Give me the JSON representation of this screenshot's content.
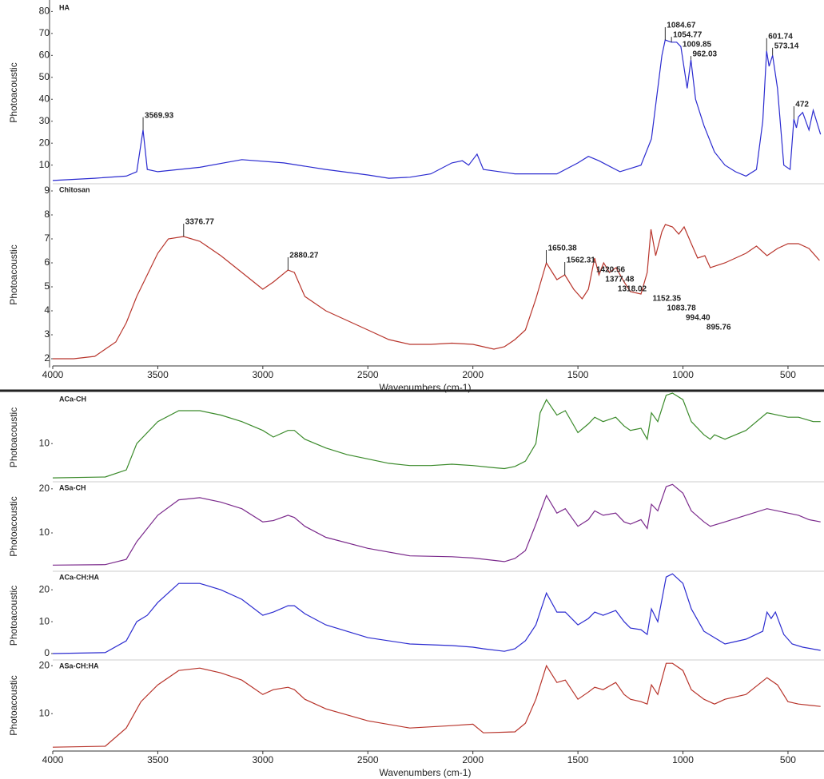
{
  "chart_data": [
    {
      "type": "line",
      "title": "HA",
      "ylabel": "Photoacoustic",
      "color": "#2b2bd0",
      "xlim": [
        4000,
        340
      ],
      "ylim": [
        1.5,
        84.5
      ],
      "yticks": [
        10,
        20,
        30,
        40,
        50,
        60,
        70,
        80
      ],
      "x": [
        4000,
        3800,
        3650,
        3600,
        3569.93,
        3550,
        3500,
        3300,
        3100,
        2900,
        2700,
        2500,
        2400,
        2300,
        2200,
        2100,
        2050,
        2020,
        1980,
        1950,
        1800,
        1600,
        1500,
        1450,
        1400,
        1300,
        1200,
        1150,
        1100,
        1084.67,
        1054.77,
        1030,
        1009.85,
        980,
        962.03,
        940,
        900,
        850,
        800,
        750,
        700,
        650,
        620,
        601.74,
        590,
        573.14,
        550,
        520,
        490,
        472,
        460,
        450,
        430,
        400,
        380,
        345
      ],
      "values": [
        3,
        4,
        5,
        7,
        26,
        8,
        7,
        9,
        12.5,
        11,
        8,
        5.5,
        4,
        4.5,
        6,
        11,
        12,
        10,
        15,
        8,
        6,
        6,
        11,
        14,
        12,
        7,
        10,
        22,
        60,
        67,
        66,
        66,
        64,
        45,
        58,
        40,
        28,
        16,
        10,
        7,
        5,
        8,
        30,
        62,
        55,
        60,
        45,
        10,
        8,
        31,
        27,
        32,
        34,
        26,
        35,
        24
      ],
      "peaks": [
        3569.93,
        1084.67,
        1054.77,
        1009.85,
        962.03,
        601.74,
        573.14,
        472
      ]
    },
    {
      "type": "line",
      "title": "Chitosan",
      "ylabel": "Photoacoustic",
      "color": "#b8352c",
      "xlim": [
        4000,
        340
      ],
      "ylim": [
        1.7,
        9.3
      ],
      "yticks": [
        2,
        3,
        4,
        5,
        6,
        7,
        8,
        9
      ],
      "xticks": [
        4000,
        3500,
        3000,
        2500,
        2000,
        1500,
        1000,
        500
      ],
      "xlabel": "Wavenumbers (cm-1)",
      "x": [
        4000,
        3900,
        3800,
        3750,
        3700,
        3650,
        3600,
        3500,
        3450,
        3376.77,
        3300,
        3200,
        3100,
        3000,
        2950,
        2880.27,
        2850,
        2800,
        2700,
        2600,
        2500,
        2400,
        2300,
        2200,
        2100,
        2000,
        1900,
        1850,
        1800,
        1750,
        1700,
        1650.38,
        1600,
        1562.31,
        1520,
        1480,
        1450,
        1420.56,
        1400,
        1377.48,
        1350,
        1318.02,
        1280,
        1250,
        1200,
        1170,
        1152.35,
        1130,
        1100,
        1083.78,
        1050,
        1020,
        994.4,
        960,
        930,
        895.76,
        870,
        800,
        700,
        650,
        600,
        550,
        500,
        450,
        400,
        350
      ],
      "values": [
        2,
        2,
        2.1,
        2.4,
        2.7,
        3.5,
        4.6,
        6.4,
        7.0,
        7.1,
        6.9,
        6.3,
        5.6,
        4.9,
        5.2,
        5.7,
        5.6,
        4.6,
        4.0,
        3.6,
        3.2,
        2.8,
        2.6,
        2.6,
        2.65,
        2.6,
        2.4,
        2.5,
        2.8,
        3.2,
        4.5,
        6.0,
        5.3,
        5.5,
        4.9,
        4.5,
        4.9,
        6.2,
        5.5,
        6.0,
        5.6,
        5.8,
        5.2,
        4.8,
        4.7,
        5.6,
        7.4,
        6.3,
        7.3,
        7.6,
        7.5,
        7.2,
        7.5,
        6.8,
        6.2,
        6.3,
        5.8,
        6.0,
        6.4,
        6.7,
        6.3,
        6.6,
        6.8,
        6.8,
        6.6,
        6.1
      ],
      "peaks": [
        3376.77,
        2880.27,
        1650.38,
        1562.31,
        1420.56,
        1377.48,
        1318.02,
        1152.35,
        1083.78,
        {
          "value": 994.4,
          "label": "994.40"
        },
        895.76
      ]
    },
    {
      "type": "line",
      "title": "ACa-CH",
      "ylabel": "Photoacoustic",
      "color": "#3a8a2a",
      "xlim": [
        4000,
        340
      ],
      "ylim": [
        1.3,
        21.5
      ],
      "yticks": [
        10
      ],
      "x": [
        4000,
        3750,
        3650,
        3600,
        3500,
        3400,
        3300,
        3200,
        3100,
        3000,
        2950,
        2880,
        2850,
        2800,
        2700,
        2600,
        2500,
        2400,
        2300,
        2200,
        2100,
        2000,
        1900,
        1850,
        1800,
        1750,
        1700,
        1680,
        1650,
        1600,
        1560,
        1500,
        1450,
        1420,
        1380,
        1320,
        1280,
        1250,
        1200,
        1170,
        1150,
        1120,
        1080,
        1050,
        1000,
        960,
        900,
        870,
        850,
        800,
        700,
        600,
        500,
        450,
        380,
        345
      ],
      "values": [
        2.2,
        2.4,
        4,
        10,
        15,
        17.5,
        17.5,
        16.5,
        15,
        13,
        11.5,
        13,
        13,
        11,
        9,
        7.5,
        6.5,
        5.5,
        5,
        5,
        5.3,
        5,
        4.5,
        4.3,
        4.8,
        6,
        10,
        17,
        20,
        16.5,
        17.5,
        12.5,
        14.5,
        16,
        15,
        16,
        14,
        13,
        13.5,
        11,
        17,
        15,
        21,
        21.5,
        20,
        15,
        12,
        11,
        12,
        11,
        13,
        17,
        16,
        16,
        15,
        15
      ]
    },
    {
      "type": "line",
      "title": "ASa-CH",
      "ylabel": "Photoacoustic",
      "color": "#7b2a8c",
      "xlim": [
        4000,
        340
      ],
      "ylim": [
        1.3,
        21.6
      ],
      "yticks": [
        10,
        20
      ],
      "x": [
        4000,
        3750,
        3650,
        3600,
        3500,
        3400,
        3300,
        3200,
        3100,
        3000,
        2950,
        2880,
        2850,
        2800,
        2700,
        2500,
        2300,
        2100,
        2000,
        1850,
        1800,
        1750,
        1700,
        1650,
        1600,
        1560,
        1500,
        1450,
        1420,
        1380,
        1320,
        1280,
        1250,
        1200,
        1170,
        1150,
        1120,
        1080,
        1050,
        1000,
        960,
        900,
        870,
        800,
        700,
        600,
        500,
        450,
        400,
        345
      ],
      "values": [
        2.7,
        2.8,
        4,
        8,
        14,
        17.5,
        18,
        17,
        15.5,
        12.5,
        12.8,
        14,
        13.5,
        11.5,
        9,
        6.5,
        4.8,
        4.6,
        4.3,
        3.5,
        4.2,
        6,
        12,
        18.5,
        14.5,
        15.5,
        11.5,
        13,
        15,
        14,
        14.5,
        12.5,
        12,
        13,
        11,
        16.5,
        15,
        20.5,
        21,
        19,
        15,
        12.5,
        11.5,
        12.5,
        14,
        15.5,
        14.5,
        14,
        13,
        12.5
      ]
    },
    {
      "type": "line",
      "title": "ACa-CH:HA",
      "ylabel": "Photoacoustic",
      "color": "#2b2bd0",
      "xlim": [
        4000,
        340
      ],
      "ylim": [
        -2,
        25.8
      ],
      "yticks": [
        0,
        10,
        20
      ],
      "x": [
        4000,
        3750,
        3650,
        3600,
        3550,
        3500,
        3400,
        3300,
        3200,
        3100,
        3000,
        2950,
        2880,
        2850,
        2800,
        2700,
        2500,
        2300,
        2100,
        2000,
        1950,
        1850,
        1800,
        1750,
        1700,
        1650,
        1600,
        1560,
        1500,
        1450,
        1420,
        1380,
        1320,
        1280,
        1250,
        1200,
        1170,
        1150,
        1120,
        1080,
        1050,
        1000,
        960,
        900,
        850,
        800,
        700,
        620,
        600,
        580,
        560,
        520,
        480,
        430,
        345
      ],
      "values": [
        0,
        0.3,
        4,
        10,
        12,
        16,
        22,
        22,
        20,
        17,
        12,
        13,
        15,
        15,
        12.5,
        9,
        5,
        3,
        2.5,
        2,
        1.5,
        0.7,
        1.5,
        4,
        9,
        19,
        13,
        13,
        9,
        11,
        13,
        12,
        13.5,
        10,
        8,
        7.5,
        6,
        14,
        10,
        24,
        25,
        22,
        14,
        7,
        5,
        3,
        4.5,
        7,
        13,
        11,
        13,
        6,
        3,
        2,
        1
      ]
    },
    {
      "type": "line",
      "title": "ASa-CH:HA",
      "ylabel": "Photoacoustic",
      "color": "#b8352c",
      "xlim": [
        4000,
        340
      ],
      "ylim": [
        2.2,
        21.2
      ],
      "yticks": [
        10,
        20
      ],
      "xticks": [
        4000,
        3500,
        3000,
        2500,
        2000,
        1500,
        1000,
        500
      ],
      "xlabel": "Wavenumbers (cm-1)",
      "x": [
        4000,
        3750,
        3650,
        3580,
        3500,
        3400,
        3300,
        3200,
        3100,
        3000,
        2950,
        2880,
        2850,
        2800,
        2700,
        2500,
        2300,
        2100,
        2000,
        1950,
        1800,
        1750,
        1700,
        1650,
        1600,
        1560,
        1500,
        1450,
        1420,
        1380,
        1320,
        1280,
        1250,
        1200,
        1170,
        1150,
        1120,
        1080,
        1050,
        1000,
        960,
        900,
        850,
        800,
        700,
        600,
        550,
        500,
        450,
        345
      ],
      "values": [
        3,
        3.2,
        7,
        12.5,
        16,
        19,
        19.5,
        18.5,
        17,
        14,
        15,
        15.5,
        15,
        13,
        11,
        8.5,
        7,
        7.5,
        7.8,
        6,
        6.2,
        8,
        13,
        20,
        16.5,
        17,
        13,
        14.5,
        15.5,
        15,
        16.5,
        14,
        13,
        12.5,
        12,
        16,
        14,
        20.5,
        20.5,
        19,
        15,
        13,
        12,
        13,
        14,
        17.5,
        16,
        12.5,
        12,
        11.5
      ]
    }
  ]
}
